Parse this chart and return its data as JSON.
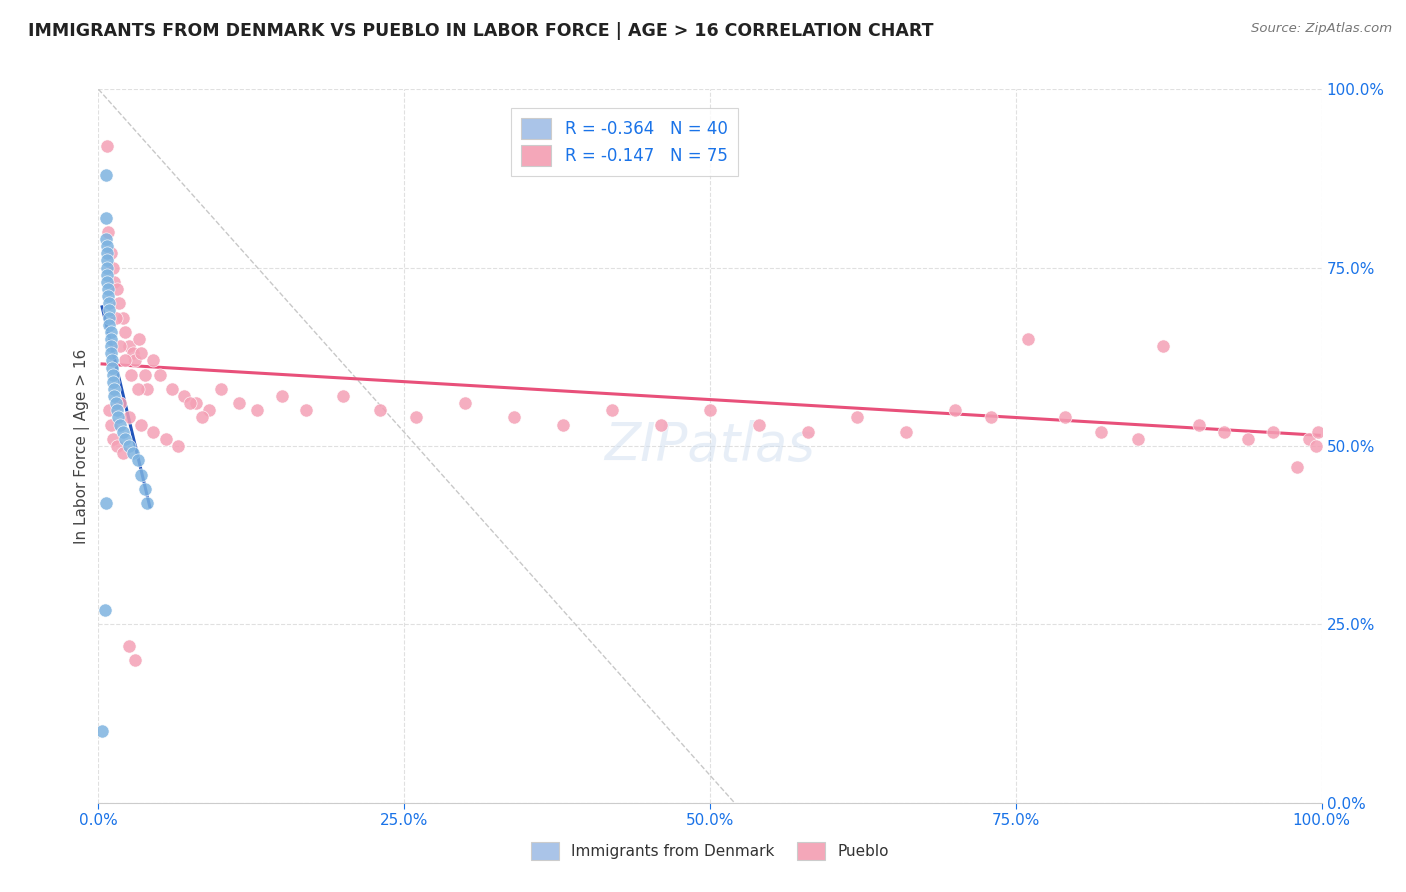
{
  "title": "IMMIGRANTS FROM DENMARK VS PUEBLO IN LABOR FORCE | AGE > 16 CORRELATION CHART",
  "source": "Source: ZipAtlas.com",
  "ylabel": "In Labor Force | Age > 16",
  "xlim": [
    0.0,
    1.0
  ],
  "ylim": [
    0.0,
    1.0
  ],
  "legend_entries": [
    {
      "label": "R = -0.364   N = 40",
      "color": "#aac4e8"
    },
    {
      "label": "R = -0.147   N = 75",
      "color": "#f4a7b9"
    }
  ],
  "legend_bottom": [
    {
      "label": "Immigrants from Denmark",
      "color": "#aac4e8"
    },
    {
      "label": "Pueblo",
      "color": "#f4a7b9"
    }
  ],
  "blue_scatter_x": [
    0.006,
    0.006,
    0.006,
    0.007,
    0.007,
    0.007,
    0.007,
    0.007,
    0.007,
    0.008,
    0.008,
    0.009,
    0.009,
    0.009,
    0.009,
    0.01,
    0.01,
    0.01,
    0.01,
    0.011,
    0.011,
    0.012,
    0.012,
    0.013,
    0.013,
    0.014,
    0.015,
    0.016,
    0.018,
    0.02,
    0.022,
    0.025,
    0.028,
    0.032,
    0.035,
    0.038,
    0.04,
    0.006,
    0.005,
    0.003
  ],
  "blue_scatter_y": [
    0.88,
    0.82,
    0.79,
    0.78,
    0.77,
    0.76,
    0.75,
    0.74,
    0.73,
    0.72,
    0.71,
    0.7,
    0.69,
    0.68,
    0.67,
    0.66,
    0.65,
    0.64,
    0.63,
    0.62,
    0.61,
    0.6,
    0.59,
    0.58,
    0.57,
    0.56,
    0.55,
    0.54,
    0.53,
    0.52,
    0.51,
    0.5,
    0.49,
    0.48,
    0.46,
    0.44,
    0.42,
    0.42,
    0.27,
    0.1
  ],
  "pink_scatter_x": [
    0.007,
    0.008,
    0.01,
    0.012,
    0.013,
    0.015,
    0.017,
    0.02,
    0.022,
    0.025,
    0.028,
    0.03,
    0.033,
    0.035,
    0.038,
    0.04,
    0.045,
    0.05,
    0.06,
    0.07,
    0.08,
    0.09,
    0.1,
    0.115,
    0.13,
    0.15,
    0.17,
    0.2,
    0.23,
    0.26,
    0.3,
    0.34,
    0.38,
    0.42,
    0.46,
    0.5,
    0.54,
    0.58,
    0.62,
    0.66,
    0.7,
    0.73,
    0.76,
    0.79,
    0.82,
    0.85,
    0.87,
    0.9,
    0.92,
    0.94,
    0.96,
    0.98,
    0.99,
    0.995,
    0.997,
    0.014,
    0.018,
    0.022,
    0.027,
    0.032,
    0.018,
    0.025,
    0.035,
    0.045,
    0.055,
    0.065,
    0.075,
    0.085,
    0.009,
    0.01,
    0.012,
    0.015,
    0.02,
    0.025,
    0.03
  ],
  "pink_scatter_y": [
    0.92,
    0.8,
    0.77,
    0.75,
    0.73,
    0.72,
    0.7,
    0.68,
    0.66,
    0.64,
    0.63,
    0.62,
    0.65,
    0.63,
    0.6,
    0.58,
    0.62,
    0.6,
    0.58,
    0.57,
    0.56,
    0.55,
    0.58,
    0.56,
    0.55,
    0.57,
    0.55,
    0.57,
    0.55,
    0.54,
    0.56,
    0.54,
    0.53,
    0.55,
    0.53,
    0.55,
    0.53,
    0.52,
    0.54,
    0.52,
    0.55,
    0.54,
    0.65,
    0.54,
    0.52,
    0.51,
    0.64,
    0.53,
    0.52,
    0.51,
    0.52,
    0.47,
    0.51,
    0.5,
    0.52,
    0.68,
    0.64,
    0.62,
    0.6,
    0.58,
    0.56,
    0.54,
    0.53,
    0.52,
    0.51,
    0.5,
    0.56,
    0.54,
    0.55,
    0.53,
    0.51,
    0.5,
    0.49,
    0.22,
    0.2
  ],
  "blue_line_x": [
    0.003,
    0.042
  ],
  "blue_line_y": [
    0.695,
    0.415
  ],
  "pink_line_x": [
    0.003,
    0.998
  ],
  "pink_line_y": [
    0.615,
    0.515
  ],
  "diagonal_line_x": [
    0.0,
    0.52
  ],
  "diagonal_line_y": [
    1.0,
    0.0
  ],
  "title_color": "#222222",
  "axis_color": "#1a73e8",
  "scatter_blue_color": "#7eb3e0",
  "scatter_pink_color": "#f4a0b5",
  "line_blue_color": "#2255bb",
  "line_pink_color": "#e8507a",
  "diagonal_color": "#c8c8c8",
  "background_color": "#ffffff",
  "grid_color": "#e0e0e0"
}
